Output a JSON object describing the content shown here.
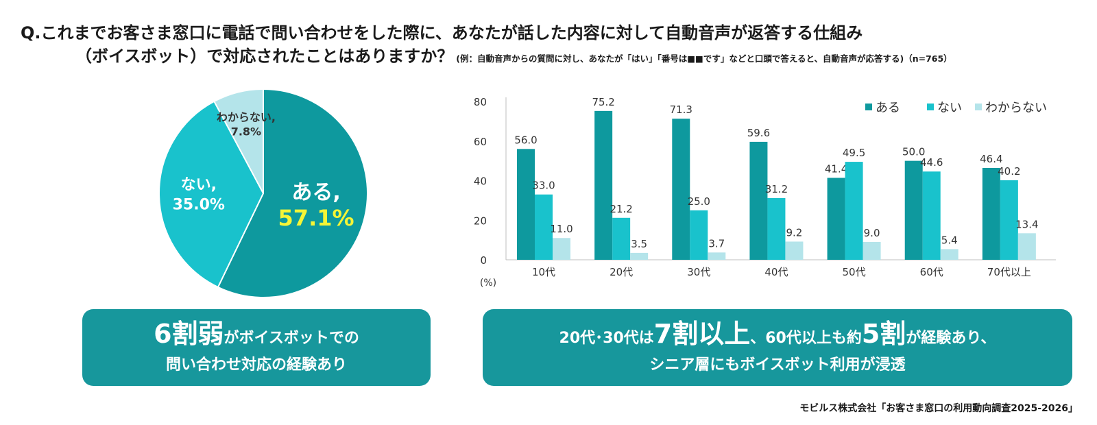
{
  "question": {
    "line1": "Q.これまでお客さま窓口に電話で問い合わせをした際に、あなたが話した内容に対して自動音声が返答する仕組み",
    "line2": "（ボイスボット）で対応されたことはありますか？",
    "note": "(例：自動音声からの質問に対し、あなたが「はい」「番号は■■です」などと口頭で答えると、自動音声が応答する)（n=765）"
  },
  "colors": {
    "aru": "#0e999e",
    "nai": "#19c2cc",
    "wakaranai": "#b4e4ea",
    "box": "#17979c",
    "highlight": "#f5f536"
  },
  "chart_data": [
    {
      "type": "pie",
      "categories": [
        "ある",
        "ない",
        "わからない"
      ],
      "values": [
        57.1,
        35.0,
        7.8
      ],
      "labels": [
        {
          "name": "ある,",
          "value": "57.1%"
        },
        {
          "name": "ない,",
          "value": "35.0%"
        },
        {
          "name": "わからない,",
          "value": "7.8%"
        }
      ]
    },
    {
      "type": "bar",
      "categories": [
        "10代",
        "20代",
        "30代",
        "40代",
        "50代",
        "60代",
        "70代以上"
      ],
      "series": [
        {
          "name": "ある",
          "values": [
            56.0,
            75.2,
            71.3,
            59.6,
            41.4,
            50.0,
            46.4
          ]
        },
        {
          "name": "ない",
          "values": [
            33.0,
            21.2,
            25.0,
            31.2,
            49.5,
            44.6,
            40.2
          ]
        },
        {
          "name": "わからない",
          "values": [
            11.0,
            3.5,
            3.7,
            9.2,
            9.0,
            5.4,
            13.4
          ]
        }
      ],
      "yticks": [
        "0",
        "20",
        "40",
        "60",
        "80"
      ],
      "ylim": [
        0,
        80
      ],
      "unit_label": "(%)",
      "legend_position": "top-right"
    }
  ],
  "summary_left": {
    "big": "6割弱",
    "rest1": "がボイスボットでの",
    "line2": "問い合わせ対応の経験あり"
  },
  "summary_right": {
    "part1": "20代･30代は",
    "big1": "7割以上",
    "part2": "、60代以上も約",
    "big2": "5割",
    "part3": "が経験あり、",
    "line2": "シニア層にもボイスボット利用が浸透"
  },
  "source": "モビルス株式会社「お客さま窓口の利用動向調査2025-2026」"
}
